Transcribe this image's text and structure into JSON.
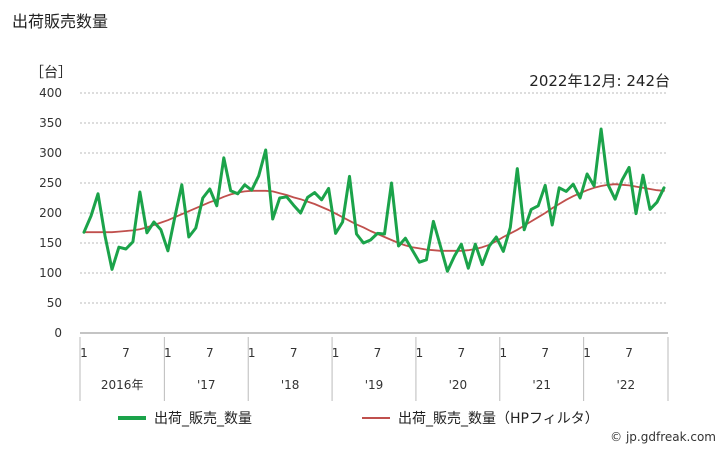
{
  "title": "出荷販売数量",
  "unit": "［台］",
  "latest": "2022年12月: 242台",
  "credit": "© jp.gdfreak.com",
  "colors": {
    "series": "#1ba34a",
    "trend": "#c0504d",
    "grid": "#bbbbbb"
  },
  "chart_data": {
    "type": "line",
    "title": "出荷販売数量",
    "ylim": [
      0,
      400
    ],
    "yticks": [
      0,
      50,
      100,
      150,
      200,
      250,
      300,
      350,
      400
    ],
    "x_ticks": [
      {
        "index": 0,
        "label": "1"
      },
      {
        "index": 6,
        "label": "7"
      },
      {
        "index": 12,
        "label": "1"
      },
      {
        "index": 18,
        "label": "7"
      },
      {
        "index": 24,
        "label": "1"
      },
      {
        "index": 30,
        "label": "7"
      },
      {
        "index": 36,
        "label": "1"
      },
      {
        "index": 42,
        "label": "7"
      },
      {
        "index": 48,
        "label": "1"
      },
      {
        "index": 54,
        "label": "7"
      },
      {
        "index": 60,
        "label": "1"
      },
      {
        "index": 66,
        "label": "7"
      },
      {
        "index": 72,
        "label": "1"
      },
      {
        "index": 78,
        "label": "7"
      }
    ],
    "year_labels": [
      {
        "label": "2016年",
        "start": 0
      },
      {
        "label": "'17",
        "start": 12
      },
      {
        "label": "'18",
        "start": 24
      },
      {
        "label": "'19",
        "start": 36
      },
      {
        "label": "'20",
        "start": 48
      },
      {
        "label": "'21",
        "start": 60
      },
      {
        "label": "'22",
        "start": 72
      }
    ],
    "series": [
      {
        "name": "出荷_販売_数量",
        "values": [
          168,
          195,
          232,
          162,
          106,
          143,
          140,
          152,
          235,
          167,
          185,
          172,
          137,
          193,
          247,
          160,
          175,
          225,
          240,
          212,
          292,
          237,
          232,
          247,
          238,
          262,
          305,
          190,
          225,
          227,
          213,
          200,
          226,
          234,
          222,
          241,
          166,
          185,
          261,
          165,
          150,
          155,
          166,
          165,
          250,
          145,
          158,
          138,
          118,
          122,
          186,
          145,
          103,
          128,
          148,
          108,
          148,
          114,
          145,
          160,
          136,
          176,
          274,
          172,
          206,
          212,
          246,
          180,
          242,
          236,
          248,
          225,
          265,
          245,
          340,
          247,
          223,
          255,
          276,
          199,
          263,
          206,
          218,
          242
        ]
      },
      {
        "name": "出荷_販売_数量（HPフィルタ）",
        "values": [
          168,
          168,
          168,
          168,
          168,
          169,
          170,
          171,
          173,
          176,
          180,
          184,
          188,
          193,
          198,
          203,
          208,
          213,
          218,
          222,
          227,
          231,
          234,
          236,
          237,
          237,
          237,
          236,
          233,
          230,
          226,
          223,
          219,
          215,
          210,
          205,
          199,
          193,
          187,
          181,
          176,
          170,
          165,
          160,
          155,
          150,
          146,
          143,
          141,
          139,
          138,
          137,
          137,
          137,
          137,
          138,
          140,
          143,
          147,
          153,
          160,
          166,
          172,
          179,
          186,
          193,
          200,
          208,
          215,
          222,
          228,
          233,
          238,
          242,
          245,
          247,
          248,
          247,
          246,
          244,
          242,
          240,
          238,
          237
        ]
      }
    ]
  }
}
